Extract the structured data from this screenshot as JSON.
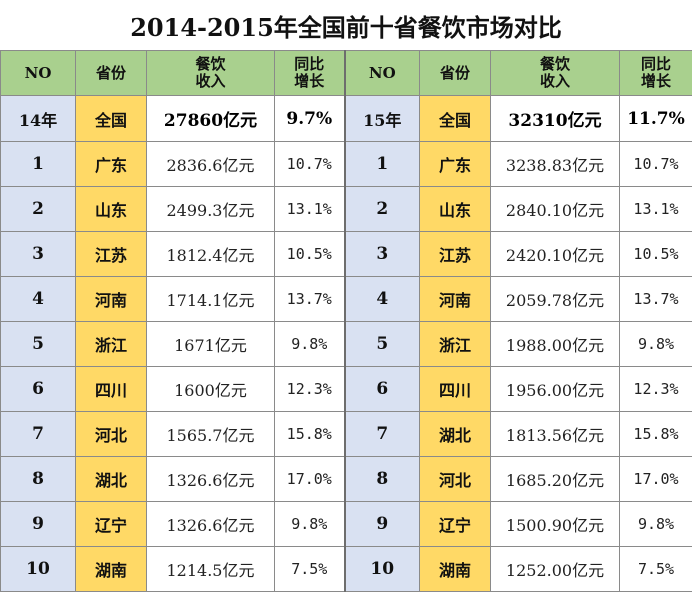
{
  "title": "2014-2015年全国前十省餐饮市场对比",
  "headers": {
    "no": "NO",
    "province": "省份",
    "revenue_line1": "餐饮",
    "revenue_line2": "收入",
    "growth_line1": "同比",
    "growth_line2": "增长"
  },
  "totals": {
    "y2014": {
      "label": "14年",
      "province": "全国",
      "revenue": "27860亿元",
      "growth": "9.7%"
    },
    "y2015": {
      "label": "15年",
      "province": "全国",
      "revenue": "32310亿元",
      "growth": "11.7%"
    }
  },
  "rows": [
    {
      "no": "1",
      "p14": "广东",
      "r14": "2836.6亿元",
      "g14": "10.7%",
      "p15": "广东",
      "r15": "3238.83亿元",
      "g15": "10.7%"
    },
    {
      "no": "2",
      "p14": "山东",
      "r14": "2499.3亿元",
      "g14": "13.1%",
      "p15": "山东",
      "r15": "2840.10亿元",
      "g15": "13.1%"
    },
    {
      "no": "3",
      "p14": "江苏",
      "r14": "1812.4亿元",
      "g14": "10.5%",
      "p15": "江苏",
      "r15": "2420.10亿元",
      "g15": "10.5%"
    },
    {
      "no": "4",
      "p14": "河南",
      "r14": "1714.1亿元",
      "g14": "13.7%",
      "p15": "河南",
      "r15": "2059.78亿元",
      "g15": "13.7%"
    },
    {
      "no": "5",
      "p14": "浙江",
      "r14": "1671亿元",
      "g14": "9.8%",
      "p15": "浙江",
      "r15": "1988.00亿元",
      "g15": "9.8%"
    },
    {
      "no": "6",
      "p14": "四川",
      "r14": "1600亿元",
      "g14": "12.3%",
      "p15": "四川",
      "r15": "1956.00亿元",
      "g15": "12.3%"
    },
    {
      "no": "7",
      "p14": "河北",
      "r14": "1565.7亿元",
      "g14": "15.8%",
      "p15": "湖北",
      "r15": "1813.56亿元",
      "g15": "15.8%"
    },
    {
      "no": "8",
      "p14": "湖北",
      "r14": "1326.6亿元",
      "g14": "17.0%",
      "p15": "河北",
      "r15": "1685.20亿元",
      "g15": "17.0%"
    },
    {
      "no": "9",
      "p14": "辽宁",
      "r14": "1326.6亿元",
      "g14": "9.8%",
      "p15": "辽宁",
      "r15": "1500.90亿元",
      "g15": "9.8%"
    },
    {
      "no": "10",
      "p14": "湖南",
      "r14": "1214.5亿元",
      "g14": "7.5%",
      "p15": "湖南",
      "r15": "1252.00亿元",
      "g15": "7.5%"
    }
  ],
  "colors": {
    "header_bg": "#a9d08e",
    "no_col_bg": "#d9e1f2",
    "province_bg": "#ffd966",
    "cell_bg": "#ffffff"
  }
}
